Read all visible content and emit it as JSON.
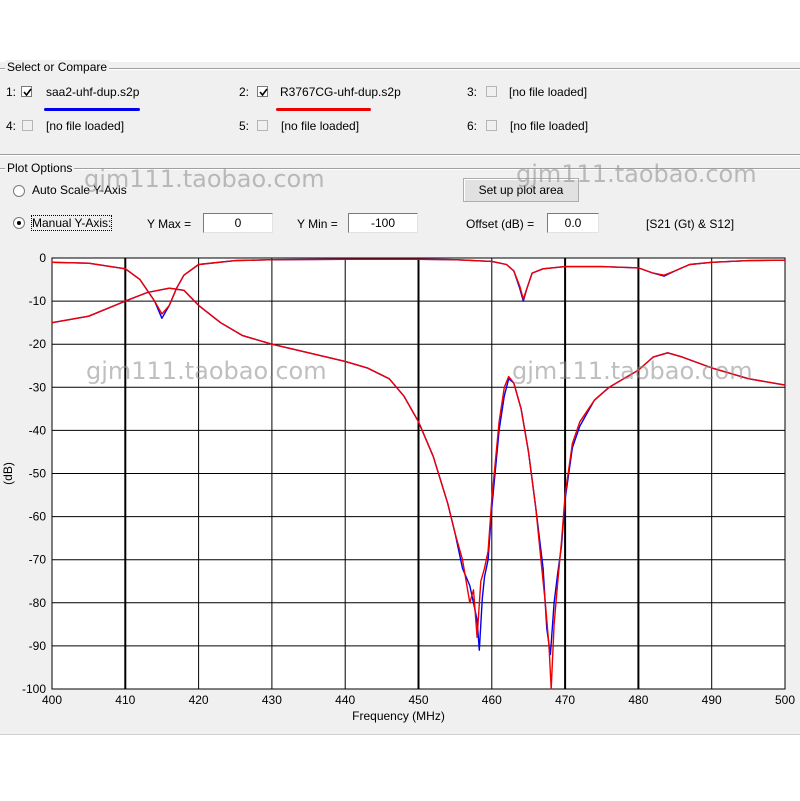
{
  "select_group": {
    "title": "Select or Compare",
    "slots": [
      {
        "num": "1:",
        "checked": true,
        "disabled": false,
        "file": "saa2-uhf-dup.s2p",
        "color": "#0000ee"
      },
      {
        "num": "2:",
        "checked": true,
        "disabled": false,
        "file": "R3767CG-uhf-dup.s2p",
        "color": "#ee0000"
      },
      {
        "num": "3:",
        "checked": false,
        "disabled": true,
        "file": "[no file loaded]"
      },
      {
        "num": "4:",
        "checked": false,
        "disabled": true,
        "file": "[no file loaded]"
      },
      {
        "num": "5:",
        "checked": false,
        "disabled": true,
        "file": "[no file loaded]"
      },
      {
        "num": "6:",
        "checked": false,
        "disabled": true,
        "file": "[no file loaded]"
      }
    ]
  },
  "plot_options": {
    "title": "Plot Options",
    "auto_scale_label": "Auto Scale Y-Axis",
    "manual_label": "Manual Y-Axis:",
    "mode": "manual",
    "ymax_label": "Y Max =",
    "ymax_value": "0",
    "ymin_label": "Y Min =",
    "ymin_value": "-100",
    "setup_button": "Set up plot area",
    "offset_label": "Offset (dB) =",
    "offset_value": "0.0",
    "trace_label": "[S21 (Gt) & S12]"
  },
  "watermark": "gjm111.taobao.com",
  "chart_data": {
    "type": "line",
    "xlabel": "Frequency (MHz)",
    "ylabel": "(dB)",
    "xlim": [
      400,
      500
    ],
    "ylim": [
      -100,
      0
    ],
    "xticks": [
      400,
      410,
      420,
      430,
      440,
      450,
      460,
      470,
      480,
      490,
      500
    ],
    "yticks": [
      0,
      -10,
      -20,
      -30,
      -40,
      -50,
      -60,
      -70,
      -80,
      -90,
      -100
    ],
    "grid": true,
    "series": [
      {
        "name": "saa2-uhf-dup.s2p",
        "color": "#0000ee",
        "points": [
          [
            400,
            -15
          ],
          [
            405,
            -13.5
          ],
          [
            410,
            -10
          ],
          [
            413,
            -8
          ],
          [
            416,
            -7
          ],
          [
            418,
            -7.5
          ],
          [
            420,
            -11
          ],
          [
            423,
            -15
          ],
          [
            426,
            -18
          ],
          [
            430,
            -20
          ],
          [
            435,
            -22
          ],
          [
            440,
            -24
          ],
          [
            443,
            -25.5
          ],
          [
            446,
            -28
          ],
          [
            448,
            -32
          ],
          [
            450,
            -38
          ],
          [
            452,
            -46
          ],
          [
            454,
            -57
          ],
          [
            455,
            -64
          ],
          [
            456,
            -72
          ],
          [
            457,
            -76
          ],
          [
            457.5,
            -80
          ],
          [
            458,
            -84
          ],
          [
            458.3,
            -91
          ],
          [
            458.7,
            -79
          ],
          [
            459,
            -74
          ],
          [
            459.5,
            -70
          ],
          [
            460,
            -58
          ],
          [
            461,
            -40
          ],
          [
            461.7,
            -32
          ],
          [
            462.3,
            -28
          ],
          [
            463,
            -29
          ],
          [
            464,
            -35
          ],
          [
            465,
            -45
          ],
          [
            466,
            -58
          ],
          [
            467,
            -72
          ],
          [
            467.5,
            -86
          ],
          [
            468,
            -92
          ],
          [
            468.5,
            -80
          ],
          [
            469,
            -73
          ],
          [
            469.5,
            -67
          ],
          [
            470,
            -56
          ],
          [
            471,
            -44
          ],
          [
            472,
            -39
          ],
          [
            474,
            -33
          ],
          [
            476,
            -30
          ],
          [
            478,
            -28
          ],
          [
            480,
            -26
          ],
          [
            482,
            -23
          ],
          [
            484,
            -22
          ],
          [
            486,
            -23
          ],
          [
            490,
            -25.5
          ],
          [
            495,
            -28
          ],
          [
            500,
            -29.5
          ]
        ]
      },
      {
        "name": "R3767CG-uhf-dup.s2p",
        "color": "#ee0000",
        "points": [
          [
            400,
            -15
          ],
          [
            405,
            -13.5
          ],
          [
            410,
            -10
          ],
          [
            413,
            -8
          ],
          [
            416,
            -7
          ],
          [
            418,
            -7.5
          ],
          [
            420,
            -11
          ],
          [
            423,
            -15
          ],
          [
            426,
            -18
          ],
          [
            430,
            -20
          ],
          [
            435,
            -22
          ],
          [
            440,
            -24
          ],
          [
            443,
            -25.5
          ],
          [
            446,
            -28
          ],
          [
            448,
            -32
          ],
          [
            450,
            -38
          ],
          [
            452,
            -46
          ],
          [
            454,
            -57
          ],
          [
            455,
            -64
          ],
          [
            456,
            -70
          ],
          [
            457,
            -80
          ],
          [
            457.5,
            -77
          ],
          [
            458,
            -88
          ],
          [
            458.5,
            -75
          ],
          [
            459,
            -72
          ],
          [
            459.5,
            -68
          ],
          [
            460,
            -56
          ],
          [
            461,
            -38
          ],
          [
            461.7,
            -30
          ],
          [
            462.3,
            -27.5
          ],
          [
            463,
            -29
          ],
          [
            464,
            -35
          ],
          [
            465,
            -45
          ],
          [
            466,
            -58
          ],
          [
            467,
            -75
          ],
          [
            467.3,
            -80
          ],
          [
            467.8,
            -90
          ],
          [
            468.1,
            -100
          ],
          [
            468.5,
            -85
          ],
          [
            469,
            -75
          ],
          [
            469.5,
            -66
          ],
          [
            470,
            -55
          ],
          [
            471,
            -43
          ],
          [
            472,
            -38
          ],
          [
            474,
            -33
          ],
          [
            476,
            -30
          ],
          [
            478,
            -28
          ],
          [
            480,
            -26
          ],
          [
            482,
            -23
          ],
          [
            484,
            -22
          ],
          [
            486,
            -23
          ],
          [
            490,
            -25.5
          ],
          [
            495,
            -28
          ],
          [
            500,
            -29.5
          ]
        ]
      },
      {
        "name": "saa2-uhf-dup.s2p S11",
        "color": "#0000ee",
        "points": [
          [
            400,
            -1
          ],
          [
            405,
            -1.2
          ],
          [
            410,
            -2.5
          ],
          [
            412,
            -5
          ],
          [
            414,
            -10
          ],
          [
            415,
            -14
          ],
          [
            416,
            -11
          ],
          [
            417,
            -7
          ],
          [
            418,
            -4
          ],
          [
            420,
            -1.5
          ],
          [
            425,
            -0.6
          ],
          [
            430,
            -0.4
          ],
          [
            440,
            -0.3
          ],
          [
            450,
            -0.3
          ],
          [
            455,
            -0.4
          ],
          [
            460,
            -0.8
          ],
          [
            462,
            -1.5
          ],
          [
            463,
            -3
          ],
          [
            463.8,
            -7
          ],
          [
            464.3,
            -10
          ],
          [
            464.8,
            -7
          ],
          [
            465.5,
            -3.5
          ],
          [
            467,
            -2.5
          ],
          [
            470,
            -2
          ],
          [
            475,
            -2
          ],
          [
            480,
            -2.3
          ],
          [
            482,
            -3.5
          ],
          [
            483.5,
            -4.2
          ],
          [
            485,
            -3
          ],
          [
            487,
            -1.5
          ],
          [
            490,
            -1
          ],
          [
            495,
            -0.6
          ],
          [
            500,
            -0.5
          ]
        ]
      },
      {
        "name": "R3767CG-uhf-dup.s2p S11",
        "color": "#ee0000",
        "points": [
          [
            400,
            -1
          ],
          [
            405,
            -1.2
          ],
          [
            410,
            -2.5
          ],
          [
            412,
            -5
          ],
          [
            414,
            -10
          ],
          [
            415,
            -13
          ],
          [
            416,
            -11
          ],
          [
            417,
            -7
          ],
          [
            418,
            -4
          ],
          [
            420,
            -1.5
          ],
          [
            425,
            -0.6
          ],
          [
            430,
            -0.4
          ],
          [
            440,
            -0.3
          ],
          [
            450,
            -0.3
          ],
          [
            455,
            -0.4
          ],
          [
            460,
            -0.8
          ],
          [
            462,
            -1.5
          ],
          [
            463,
            -3
          ],
          [
            463.8,
            -6.5
          ],
          [
            464.3,
            -9.5
          ],
          [
            464.8,
            -7
          ],
          [
            465.5,
            -3.5
          ],
          [
            467,
            -2.5
          ],
          [
            470,
            -2
          ],
          [
            475,
            -2
          ],
          [
            480,
            -2.3
          ],
          [
            482,
            -3.5
          ],
          [
            483.5,
            -4
          ],
          [
            485,
            -3
          ],
          [
            487,
            -1.5
          ],
          [
            490,
            -1
          ],
          [
            495,
            -0.6
          ],
          [
            500,
            -0.5
          ]
        ]
      }
    ]
  }
}
